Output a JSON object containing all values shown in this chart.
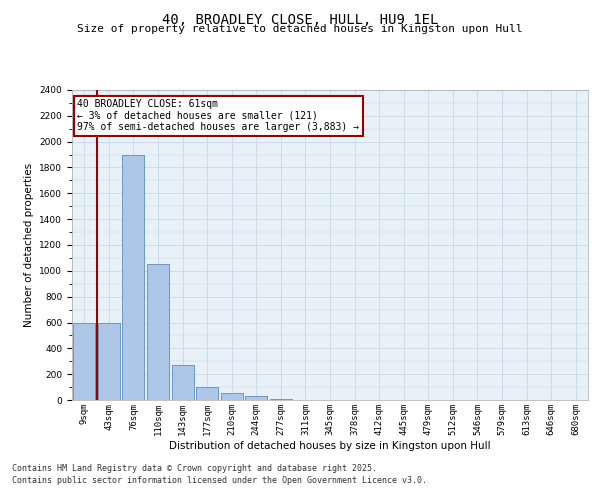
{
  "title": "40, BROADLEY CLOSE, HULL, HU9 1EL",
  "subtitle": "Size of property relative to detached houses in Kingston upon Hull",
  "xlabel": "Distribution of detached houses by size in Kingston upon Hull",
  "ylabel": "Number of detached properties",
  "bar_labels": [
    "9sqm",
    "43sqm",
    "76sqm",
    "110sqm",
    "143sqm",
    "177sqm",
    "210sqm",
    "244sqm",
    "277sqm",
    "311sqm",
    "345sqm",
    "378sqm",
    "412sqm",
    "445sqm",
    "479sqm",
    "512sqm",
    "546sqm",
    "579sqm",
    "613sqm",
    "646sqm",
    "680sqm"
  ],
  "bar_values": [
    600,
    600,
    1900,
    1050,
    270,
    100,
    55,
    30,
    10,
    0,
    0,
    0,
    0,
    0,
    0,
    0,
    0,
    0,
    0,
    0,
    0
  ],
  "bar_color": "#aec6e8",
  "bar_edge_color": "#5a8fbf",
  "grid_color": "#c8d8e8",
  "bg_color": "#e8f0f8",
  "vline_x": 0.5,
  "vline_color": "#990000",
  "annotation_text": "40 BROADLEY CLOSE: 61sqm\n← 3% of detached houses are smaller (121)\n97% of semi-detached houses are larger (3,883) →",
  "annotation_box_color": "#990000",
  "ylim": [
    0,
    2400
  ],
  "yticks": [
    0,
    200,
    400,
    600,
    800,
    1000,
    1200,
    1400,
    1600,
    1800,
    2000,
    2200,
    2400
  ],
  "footer": "Contains HM Land Registry data © Crown copyright and database right 2025.\nContains public sector information licensed under the Open Government Licence v3.0.",
  "title_fontsize": 10,
  "subtitle_fontsize": 8,
  "label_fontsize": 7.5,
  "tick_fontsize": 6.5,
  "footer_fontsize": 6,
  "ann_fontsize": 7
}
